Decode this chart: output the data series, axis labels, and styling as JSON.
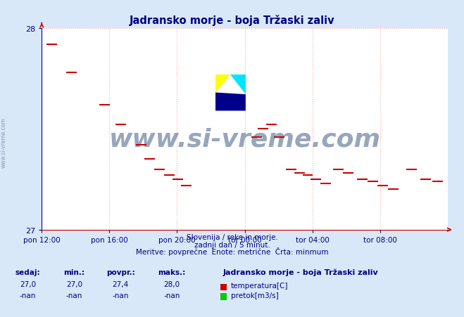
{
  "title": "Jadransko morje - boja Tržaski zaliv",
  "title_color": "#000080",
  "bg_color": "#d8e8f8",
  "plot_bg_color": "#ffffff",
  "grid_color": "#ffaaaa",
  "ymin": 27,
  "ymax": 28,
  "ytick_labels": [
    "27",
    "28"
  ],
  "ytick_vals": [
    27,
    28
  ],
  "xtick_labels": [
    "pon 12:00",
    "pon 16:00",
    "pon 20:00",
    "tor 00:00",
    "tor 04:00",
    "tor 08:00"
  ],
  "xtick_positions": [
    0.0,
    0.1667,
    0.3333,
    0.5,
    0.6667,
    0.8333
  ],
  "temp_color": "#cc0000",
  "watermark_text": "www.si-vreme.com",
  "watermark_color": "#1a3a6b",
  "footer_line1": "Slovenija / reke in morje.",
  "footer_line2": "zadnji dan / 5 minut.",
  "footer_line3": "Meritve: povprečne  Enote: metrične  Črta: minmum",
  "footer_color": "#000080",
  "legend_title": "Jadransko morje - boja Tržaski zaliv",
  "stats_labels": [
    "sedaj:",
    "min.:",
    "povpr.:",
    "maks.:"
  ],
  "stats_temp": [
    "27,0",
    "27,0",
    "27,4",
    "28,0"
  ],
  "stats_flow": [
    "-nan",
    "-nan",
    "-nan",
    "-nan"
  ],
  "temp_data_x": [
    0.025,
    0.073,
    0.155,
    0.195,
    0.245,
    0.265,
    0.29,
    0.315,
    0.335,
    0.355,
    0.53,
    0.545,
    0.565,
    0.585,
    0.615,
    0.635,
    0.655,
    0.675,
    0.7,
    0.73,
    0.755,
    0.79,
    0.815,
    0.84,
    0.865,
    0.91,
    0.945,
    0.975
  ],
  "temp_data_y": [
    27.92,
    27.78,
    27.62,
    27.52,
    27.42,
    27.35,
    27.3,
    27.27,
    27.25,
    27.22,
    27.46,
    27.5,
    27.52,
    27.46,
    27.3,
    27.28,
    27.27,
    27.25,
    27.23,
    27.3,
    27.28,
    27.25,
    27.24,
    27.22,
    27.2,
    27.3,
    27.25,
    27.24
  ]
}
